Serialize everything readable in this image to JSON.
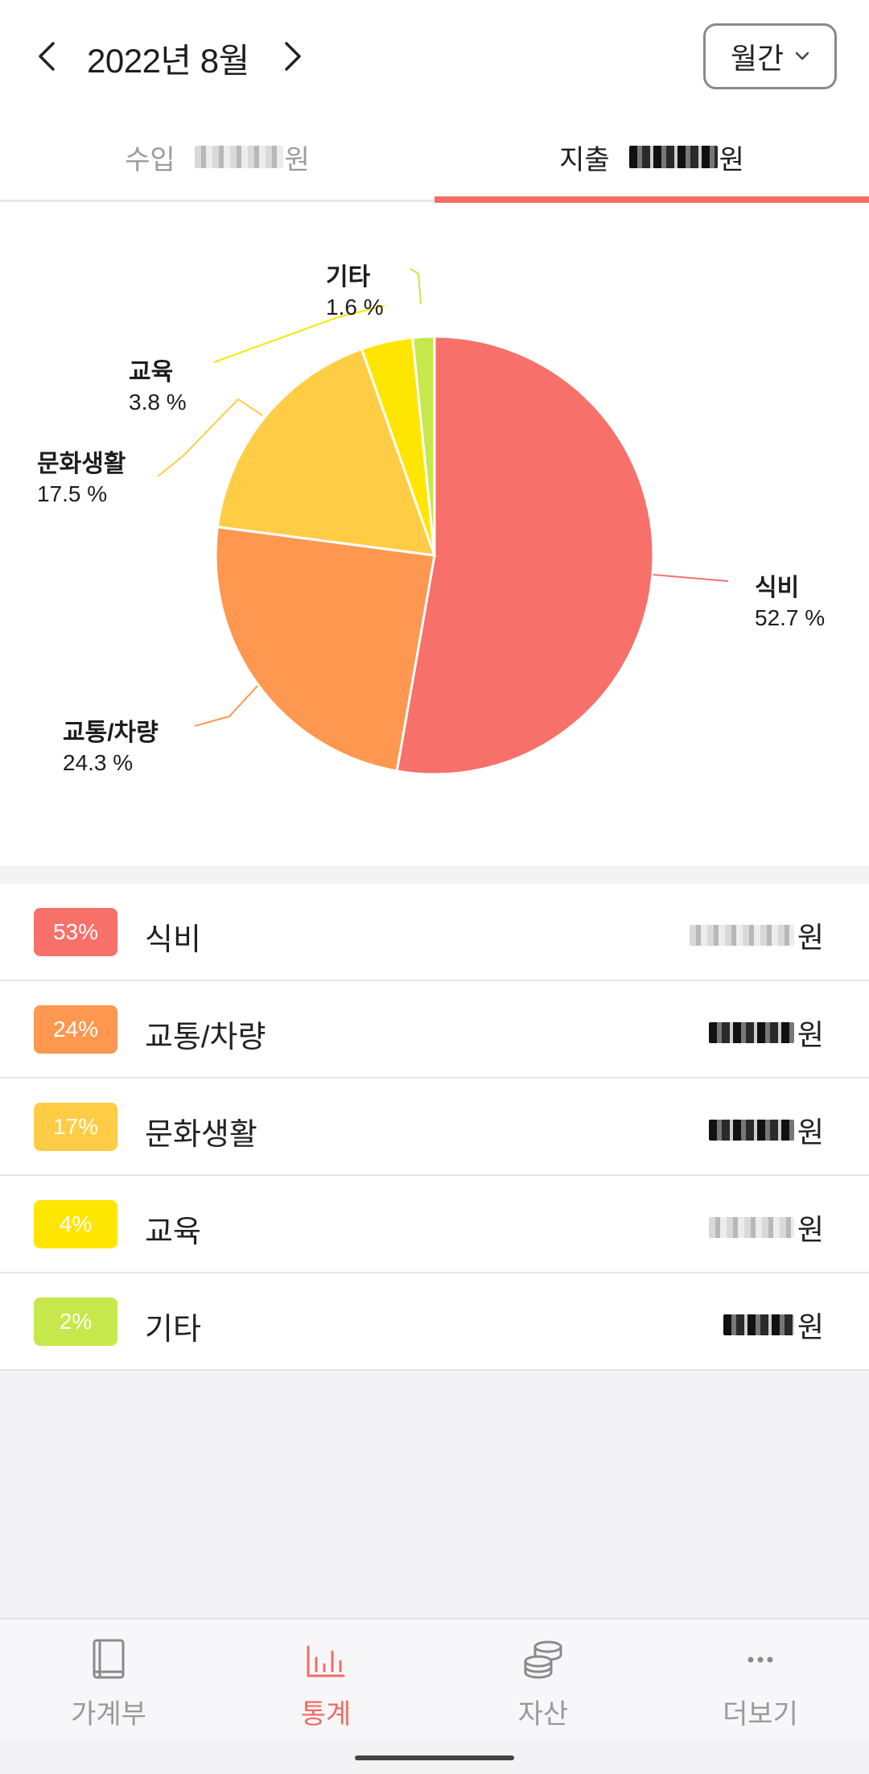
{
  "header": {
    "title": "2022년 8월",
    "period": "월간"
  },
  "tabs": {
    "income_label": "수입",
    "income_unit": "원",
    "expense_label": "지출",
    "expense_unit": "원"
  },
  "chart_data": {
    "type": "pie",
    "slices": [
      {
        "label": "식비",
        "value": 52.7,
        "pct_text": "52.7 %",
        "color": "#f7706a"
      },
      {
        "label": "교통/차량",
        "value": 24.3,
        "pct_text": "24.3 %",
        "color": "#fe974f"
      },
      {
        "label": "문화생활",
        "value": 17.5,
        "pct_text": "17.5 %",
        "color": "#ffcd45"
      },
      {
        "label": "교육",
        "value": 3.8,
        "pct_text": "3.8 %",
        "color": "#ffe600"
      },
      {
        "label": "기타",
        "value": 1.6,
        "pct_text": "1.6 %",
        "color": "#c6e84a"
      }
    ]
  },
  "list": [
    {
      "badge": "53%",
      "label": "식비",
      "unit": "원",
      "color": "#f7706a"
    },
    {
      "badge": "24%",
      "label": "교통/차량",
      "unit": "원",
      "color": "#fe974f"
    },
    {
      "badge": "17%",
      "label": "문화생활",
      "unit": "원",
      "color": "#ffcd45"
    },
    {
      "badge": "4%",
      "label": "교육",
      "unit": "원",
      "color": "#ffe600"
    },
    {
      "badge": "2%",
      "label": "기타",
      "unit": "원",
      "color": "#c6e84a"
    }
  ],
  "bottom_nav": [
    {
      "label": "가계부",
      "icon": "book-icon",
      "active": false
    },
    {
      "label": "통계",
      "icon": "bar-chart-icon",
      "active": true
    },
    {
      "label": "자산",
      "icon": "coins-icon",
      "active": false
    },
    {
      "label": "더보기",
      "icon": "more-icon",
      "active": false
    }
  ],
  "colors": {
    "accent": "#f66b62"
  }
}
